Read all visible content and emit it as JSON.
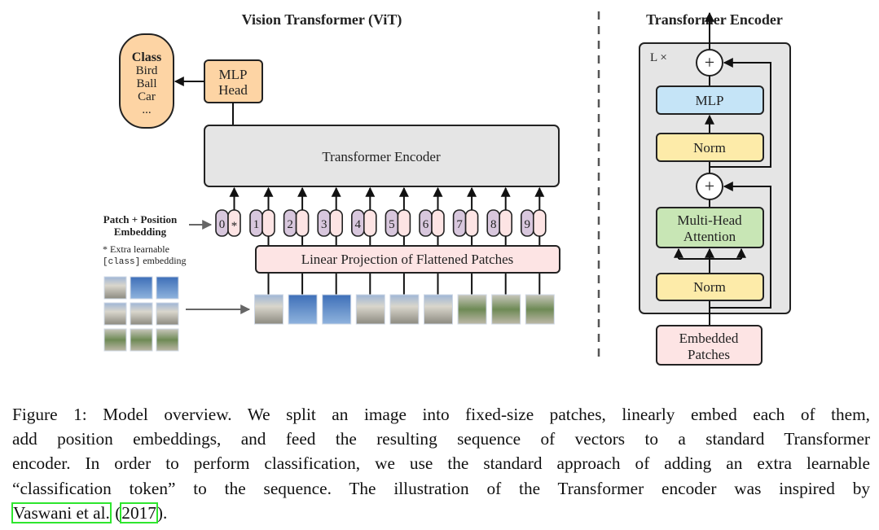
{
  "vit": {
    "title": "Vision Transformer (ViT)",
    "class_box": {
      "heading": "Class",
      "items": [
        "Bird",
        "Ball",
        "Car",
        "..."
      ]
    },
    "mlp_head": [
      "MLP",
      "Head"
    ],
    "encoder_label": "Transformer Encoder",
    "embedding_label": [
      "Patch + Position",
      "Embedding"
    ],
    "extra_note": [
      "* Extra learnable",
      "[class]",
      " embedding"
    ],
    "tokens": [
      "0",
      "1",
      "2",
      "3",
      "4",
      "5",
      "6",
      "7",
      "8",
      "9"
    ],
    "class_token_mark": "*",
    "projection_label": "Linear Projection of Flattened Patches"
  },
  "encoder": {
    "title": "Transformer Encoder",
    "repeat_label": "L ×",
    "blocks": {
      "mlp": "MLP",
      "norm2": "Norm",
      "mha": [
        "Multi-Head",
        "Attention"
      ],
      "norm1": "Norm",
      "input": [
        "Embedded",
        "Patches"
      ]
    },
    "add_symbol": "+"
  },
  "colors": {
    "token_purple": "#d8c7dd",
    "token_pink": "#fde4e4",
    "mlp_head": "#fdd4a4",
    "encoder_gray": "#e5e5e5",
    "mlp_blue": "#c5e4f7",
    "norm_yellow": "#fdeba9",
    "mha_green": "#c8e6b5",
    "citation_box": "#2ee62e"
  },
  "caption": {
    "lines": [
      "Figure 1: Model overview. We split an image into fixed-size patches, linearly embed each of them,",
      "add position embeddings, and feed the resulting sequence of vectors to a standard Transformer",
      "encoder. In order to perform classification, we use the standard approach of adding an extra learnable",
      "“classification token” to the sequence. The illustration of the Transformer encoder was inspired by"
    ],
    "last_line": {
      "cite_authors": "Vaswani et al.",
      "open": " (",
      "cite_year": "2017",
      "close": ")."
    }
  }
}
